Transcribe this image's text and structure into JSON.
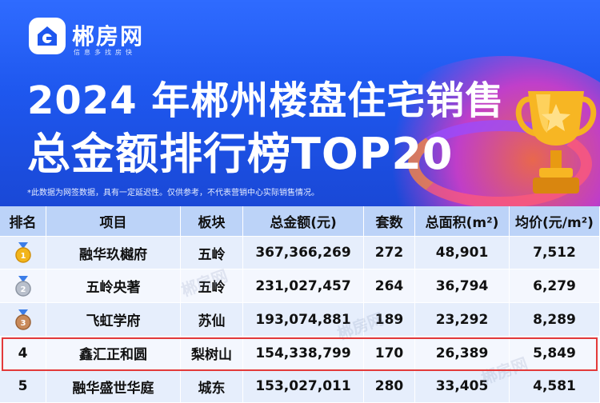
{
  "brand": {
    "name": "郴房网",
    "slogan": "信息多找房快"
  },
  "header": {
    "title_line1": "2024 年郴州楼盘住宅销售",
    "title_line2": "总金额排行榜TOP20",
    "note": "*此数据为网签数据，具有一定延迟性。仅供参考，不代表营销中心实际销售情况。"
  },
  "watermark": "郴房网",
  "table": {
    "headers": [
      "排名",
      "项目",
      "板块",
      "总金额(元)",
      "套数",
      "总面积(m²)",
      "均价(元/m²)"
    ],
    "rows": [
      {
        "rank": "1",
        "medal": "gold",
        "project": "融华玖樾府",
        "area": "五岭",
        "amount": "367,366,269",
        "units": "272",
        "size": "48,901",
        "price": "7,512"
      },
      {
        "rank": "2",
        "medal": "silver",
        "project": "五岭央著",
        "area": "五岭",
        "amount": "231,027,457",
        "units": "264",
        "size": "36,794",
        "price": "6,279"
      },
      {
        "rank": "3",
        "medal": "bronze",
        "project": "飞虹学府",
        "area": "苏仙",
        "amount": "193,074,881",
        "units": "189",
        "size": "23,292",
        "price": "8,289"
      },
      {
        "rank": "4",
        "medal": "",
        "project": "鑫汇正和圆",
        "area": "梨树山",
        "amount": "154,338,799",
        "units": "170",
        "size": "26,389",
        "price": "5,849"
      },
      {
        "rank": "5",
        "medal": "",
        "project": "融华盛世华庭",
        "area": "城东",
        "amount": "153,027,011",
        "units": "280",
        "size": "33,405",
        "price": "4,581"
      }
    ]
  },
  "colors": {
    "banner": "#1e57ee",
    "header_row": "#bcd3f8",
    "highlight": "#e33a3a",
    "gold": "#f2b51a",
    "silver": "#b9c0cc",
    "bronze": "#c98a5a"
  }
}
